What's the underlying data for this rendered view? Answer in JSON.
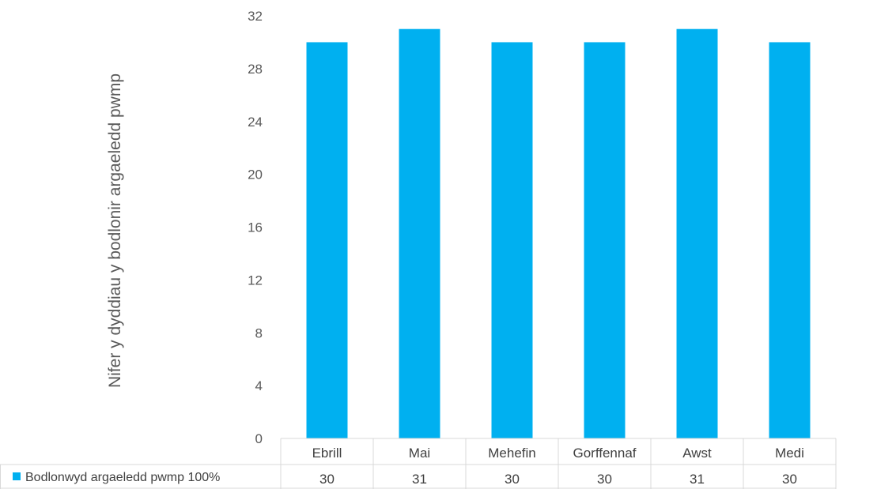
{
  "chart_data": {
    "type": "bar",
    "title": "",
    "ylabel": "Nifer y dyddiau y bodlonir argaeledd pwmp",
    "xlabel": "",
    "categories": [
      "Ebrill",
      "Mai",
      "Mehefin",
      "Gorffennaf",
      "Awst",
      "Medi"
    ],
    "series": [
      {
        "name": "Bodlonwyd argaeledd pwmp 100%",
        "values": [
          30,
          31,
          30,
          30,
          31,
          30
        ],
        "color": "#00b0f0"
      }
    ],
    "ylim": [
      0,
      32
    ],
    "yticks": [
      "0",
      "4",
      "8",
      "12",
      "16",
      "20",
      "24",
      "28",
      "32"
    ],
    "grid": false,
    "legend": "data-table-left"
  }
}
